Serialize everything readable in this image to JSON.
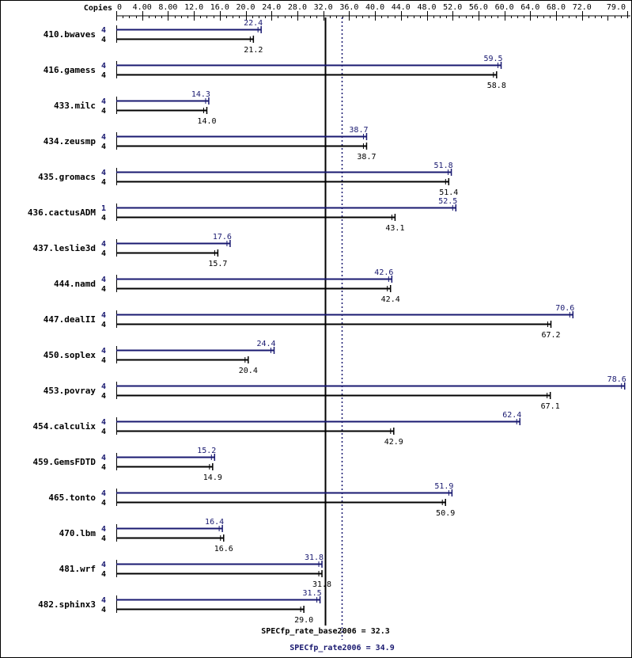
{
  "chart_data": {
    "type": "bar",
    "orientation": "horizontal",
    "title": "",
    "xlabel": "",
    "ylabel": "",
    "copies_header": "Copies",
    "xlim": [
      0,
      79.0
    ],
    "ticks": [
      {
        "value": 0,
        "label": "0"
      },
      {
        "value": 4,
        "label": "4.00"
      },
      {
        "value": 8,
        "label": "8.00"
      },
      {
        "value": 12,
        "label": "12.0"
      },
      {
        "value": 16,
        "label": "16.0"
      },
      {
        "value": 20,
        "label": "20.0"
      },
      {
        "value": 24,
        "label": "24.0"
      },
      {
        "value": 28,
        "label": "28.0"
      },
      {
        "value": 32,
        "label": "32.0"
      },
      {
        "value": 36,
        "label": "36.0"
      },
      {
        "value": 40,
        "label": "40.0"
      },
      {
        "value": 44,
        "label": "44.0"
      },
      {
        "value": 48,
        "label": "48.0"
      },
      {
        "value": 52,
        "label": "52.0"
      },
      {
        "value": 56,
        "label": "56.0"
      },
      {
        "value": 60,
        "label": "60.0"
      },
      {
        "value": 64,
        "label": "64.0"
      },
      {
        "value": 68,
        "label": "68.0"
      },
      {
        "value": 72,
        "label": "72.0"
      },
      {
        "value": 79,
        "label": "79.0"
      }
    ],
    "colors": {
      "peak": "#191970",
      "base": "#000000"
    },
    "series": [
      {
        "key": "peak"
      },
      {
        "key": "base"
      }
    ],
    "benchmarks": [
      {
        "name": "410.bwaves",
        "peak_copies": "4",
        "peak": 22.4,
        "peak_label": "22.4",
        "base_copies": "4",
        "base": 21.2,
        "base_label": "21.2"
      },
      {
        "name": "416.gamess",
        "peak_copies": "4",
        "peak": 59.5,
        "peak_label": "59.5",
        "base_copies": "4",
        "base": 58.8,
        "base_label": "58.8"
      },
      {
        "name": "433.milc",
        "peak_copies": "4",
        "peak": 14.3,
        "peak_label": "14.3",
        "base_copies": "4",
        "base": 14.0,
        "base_label": "14.0"
      },
      {
        "name": "434.zeusmp",
        "peak_copies": "4",
        "peak": 38.7,
        "peak_label": "38.7",
        "base_copies": "4",
        "base": 38.7,
        "base_label": "38.7"
      },
      {
        "name": "435.gromacs",
        "peak_copies": "4",
        "peak": 51.8,
        "peak_label": "51.8",
        "base_copies": "4",
        "base": 51.4,
        "base_label": "51.4"
      },
      {
        "name": "436.cactusADM",
        "peak_copies": "1",
        "peak": 52.5,
        "peak_label": "52.5",
        "base_copies": "4",
        "base": 43.1,
        "base_label": "43.1"
      },
      {
        "name": "437.leslie3d",
        "peak_copies": "4",
        "peak": 17.6,
        "peak_label": "17.6",
        "base_copies": "4",
        "base": 15.7,
        "base_label": "15.7"
      },
      {
        "name": "444.namd",
        "peak_copies": "4",
        "peak": 42.6,
        "peak_label": "42.6",
        "base_copies": "4",
        "base": 42.4,
        "base_label": "42.4"
      },
      {
        "name": "447.dealII",
        "peak_copies": "4",
        "peak": 70.6,
        "peak_label": "70.6",
        "base_copies": "4",
        "base": 67.2,
        "base_label": "67.2"
      },
      {
        "name": "450.soplex",
        "peak_copies": "4",
        "peak": 24.4,
        "peak_label": "24.4",
        "base_copies": "4",
        "base": 20.4,
        "base_label": "20.4"
      },
      {
        "name": "453.povray",
        "peak_copies": "4",
        "peak": 78.6,
        "peak_label": "78.6",
        "base_copies": "4",
        "base": 67.1,
        "base_label": "67.1"
      },
      {
        "name": "454.calculix",
        "peak_copies": "4",
        "peak": 62.4,
        "peak_label": "62.4",
        "base_copies": "4",
        "base": 42.9,
        "base_label": "42.9"
      },
      {
        "name": "459.GemsFDTD",
        "peak_copies": "4",
        "peak": 15.2,
        "peak_label": "15.2",
        "base_copies": "4",
        "base": 14.9,
        "base_label": "14.9"
      },
      {
        "name": "465.tonto",
        "peak_copies": "4",
        "peak": 51.9,
        "peak_label": "51.9",
        "base_copies": "4",
        "base": 50.9,
        "base_label": "50.9"
      },
      {
        "name": "470.lbm",
        "peak_copies": "4",
        "peak": 16.4,
        "peak_label": "16.4",
        "base_copies": "4",
        "base": 16.6,
        "base_label": "16.6"
      },
      {
        "name": "481.wrf",
        "peak_copies": "4",
        "peak": 31.8,
        "peak_label": "31.8",
        "base_copies": "4",
        "base": 31.8,
        "base_label": "31.8"
      },
      {
        "name": "482.sphinx3",
        "peak_copies": "4",
        "peak": 31.5,
        "peak_label": "31.5",
        "base_copies": "4",
        "base": 29.0,
        "base_label": "29.0"
      }
    ],
    "reference_lines": [
      {
        "key": "base",
        "value": 32.3,
        "label": "SPECfp_rate_base2006 = 32.3",
        "style": "solid"
      },
      {
        "key": "peak",
        "value": 34.9,
        "label": "SPECfp_rate2006 = 34.9",
        "style": "dotted"
      }
    ]
  }
}
